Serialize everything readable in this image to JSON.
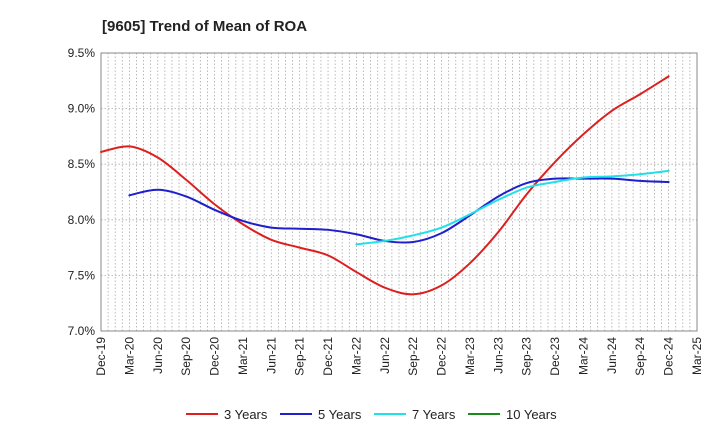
{
  "chart_data": {
    "type": "line",
    "title": "[9605]  Trend of Mean of ROA",
    "xlabel": "",
    "ylabel": "",
    "x_labels": [
      "Dec-19",
      "Mar-20",
      "Jun-20",
      "Sep-20",
      "Dec-20",
      "Mar-21",
      "Jun-21",
      "Sep-21",
      "Dec-21",
      "Mar-22",
      "Jun-22",
      "Sep-22",
      "Dec-22",
      "Mar-23",
      "Jun-23",
      "Sep-23",
      "Dec-23",
      "Mar-24",
      "Jun-24",
      "Sep-24",
      "Dec-24",
      "Mar-25"
    ],
    "y_tick_labels": [
      "9.5%",
      "9.0%",
      "8.5%",
      "8.0%",
      "7.5%",
      "7.0%"
    ],
    "y_ticks": [
      9.5,
      9.0,
      8.5,
      8.0,
      7.5,
      7.0
    ],
    "ylim": [
      7.0,
      9.5
    ],
    "grid": true,
    "legend_position": "bottom",
    "series": [
      {
        "name": "3 Years",
        "color": "#dd1f1f",
        "values": [
          8.61,
          8.66,
          8.56,
          8.36,
          8.14,
          7.96,
          7.82,
          7.75,
          7.68,
          7.53,
          7.39,
          7.33,
          7.41,
          7.61,
          7.89,
          8.23,
          8.52,
          8.77,
          8.98,
          9.13,
          9.29,
          null
        ]
      },
      {
        "name": "5 Years",
        "color": "#1f1fcc",
        "values": [
          null,
          8.22,
          8.27,
          8.21,
          8.09,
          7.99,
          7.93,
          7.92,
          7.91,
          7.87,
          7.81,
          7.8,
          7.88,
          8.04,
          8.21,
          8.33,
          8.37,
          8.37,
          8.37,
          8.35,
          8.34,
          null
        ]
      },
      {
        "name": "7 Years",
        "color": "#22e0e8",
        "values": [
          null,
          null,
          null,
          null,
          null,
          null,
          null,
          null,
          null,
          7.78,
          7.81,
          7.86,
          7.93,
          8.05,
          8.18,
          8.29,
          8.34,
          8.38,
          8.39,
          8.41,
          8.44,
          null
        ]
      },
      {
        "name": "10 Years",
        "color": "#1a8a1a",
        "values": [
          null,
          null,
          null,
          null,
          null,
          null,
          null,
          null,
          null,
          null,
          null,
          null,
          null,
          null,
          null,
          null,
          null,
          null,
          null,
          null,
          null,
          null
        ]
      }
    ]
  }
}
